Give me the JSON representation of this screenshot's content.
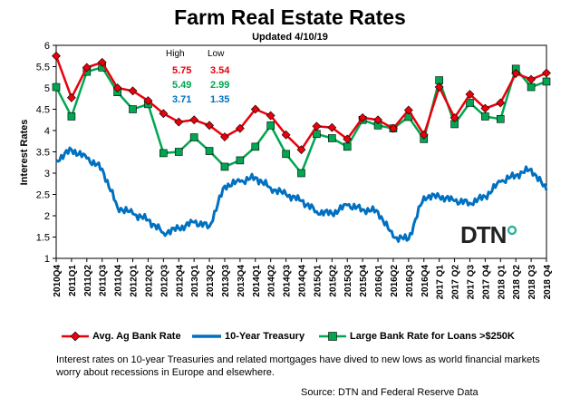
{
  "chart_data": {
    "type": "line",
    "title": "Farm Real Estate Rates",
    "subtitle": "Updated  4/10/19",
    "ylabel": "Interest Rates",
    "xlabel": "",
    "ylim": [
      1,
      6
    ],
    "yticks": [
      "1",
      "1.5",
      "2",
      "2.5",
      "3",
      "3.5",
      "4",
      "4.5",
      "5",
      "5.5",
      "6"
    ],
    "categories": [
      "2010Q4",
      "2011Q1",
      "2011Q2",
      "2011Q3",
      "2011Q4",
      "2012Q1",
      "2012Q2",
      "2012Q3",
      "2012Q4",
      "2013Q1",
      "2013Q2",
      "2013Q3",
      "2013Q4",
      "2014Q1",
      "2014Q2",
      "2014Q3",
      "2014Q4",
      "2015Q1",
      "2015Q2",
      "2015Q3",
      "2015Q4",
      "2016Q1",
      "2016Q2",
      "2016Q3",
      "2016Q4",
      "2017 Q1",
      "2017 Q2",
      "2017 Q3",
      "2017 Q4",
      "2018 Q1",
      "2018 Q2",
      "2018 Q3",
      "2018 Q4"
    ],
    "series": [
      {
        "name": "Avg. Ag Bank Rate",
        "color": "#e8000b",
        "marker": "diamond",
        "values": [
          5.75,
          4.77,
          5.48,
          5.6,
          5.0,
          4.93,
          4.7,
          4.4,
          4.2,
          4.25,
          4.12,
          3.85,
          4.05,
          4.5,
          4.35,
          3.9,
          3.55,
          4.1,
          4.07,
          3.8,
          4.3,
          4.25,
          4.05,
          4.48,
          3.9,
          5.02,
          4.3,
          4.85,
          4.52,
          4.65,
          5.34,
          5.2,
          5.35
        ]
      },
      {
        "name": "10-Year Treasury",
        "color": "#0070c0",
        "marker": "none",
        "values": [
          3.3,
          3.55,
          3.35,
          3.1,
          2.2,
          2.05,
          1.9,
          1.6,
          1.7,
          1.85,
          1.75,
          2.7,
          2.8,
          2.9,
          2.65,
          2.5,
          2.35,
          2.1,
          2.05,
          2.25,
          2.15,
          2.1,
          1.5,
          1.45,
          2.45,
          2.45,
          2.35,
          2.3,
          2.45,
          2.8,
          2.95,
          3.1,
          2.6
        ]
      },
      {
        "name": "Large Bank Rate for Loans >$250K",
        "color": "#00a651",
        "marker": "square",
        "values": [
          5.02,
          4.33,
          5.38,
          5.48,
          4.9,
          4.5,
          4.62,
          3.47,
          3.5,
          3.84,
          3.52,
          3.15,
          3.3,
          3.62,
          4.12,
          3.45,
          3.0,
          3.92,
          3.82,
          3.62,
          4.25,
          4.12,
          4.05,
          4.32,
          3.8,
          5.18,
          4.15,
          4.65,
          4.33,
          4.27,
          5.45,
          5.02,
          5.15
        ]
      }
    ],
    "highlow": {
      "header_high": "High",
      "header_low": "Low",
      "rows": [
        {
          "high": "5.75",
          "low": "3.54",
          "color": "#e8000b"
        },
        {
          "high": "5.49",
          "low": "2.99",
          "color": "#00a651"
        },
        {
          "high": "3.71",
          "low": "1.35",
          "color": "#0070c0"
        }
      ]
    },
    "legend_placement": "bottom",
    "grid": false
  },
  "caption": "Interest rates on 10-year Treasuries and related mortgages have dived to new lows as world financial markets worry about recessions in Europe and elsewhere.",
  "source": "Source: DTN  and Federal Reserve Data",
  "logo": {
    "text": "DTN",
    "accent_color": "#2bb39b"
  }
}
